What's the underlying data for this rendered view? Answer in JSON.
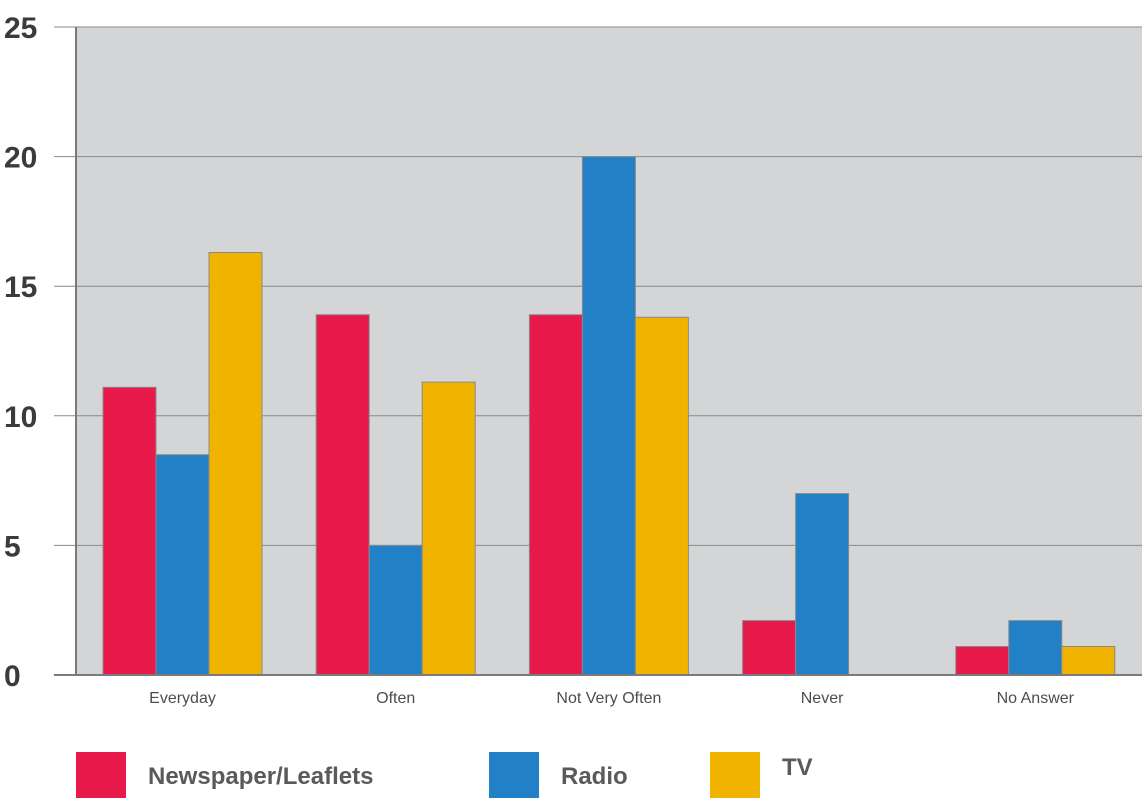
{
  "chart_data": {
    "type": "bar",
    "categories": [
      "Everyday",
      "Often",
      "Not Very Often",
      "Never",
      "No Answer"
    ],
    "series": [
      {
        "name": "Newspaper/Leaflets",
        "values": [
          11.1,
          13.9,
          13.9,
          2.1,
          1.1
        ],
        "color": "#e8194b"
      },
      {
        "name": "Radio",
        "values": [
          8.5,
          5.0,
          20.0,
          7.0,
          2.1
        ],
        "color": "#2180c6"
      },
      {
        "name": "TV",
        "values": [
          16.3,
          11.3,
          13.8,
          0,
          1.1
        ],
        "color": "#f0b400"
      }
    ],
    "ylim": [
      0,
      25
    ],
    "yticks": [
      "0",
      "5",
      "10",
      "15",
      "20",
      "25"
    ],
    "ytick_values": [
      0,
      5,
      10,
      15,
      20,
      25
    ],
    "grid": true,
    "legend_position": "bottom",
    "plot_background": "#d4d5d7"
  }
}
